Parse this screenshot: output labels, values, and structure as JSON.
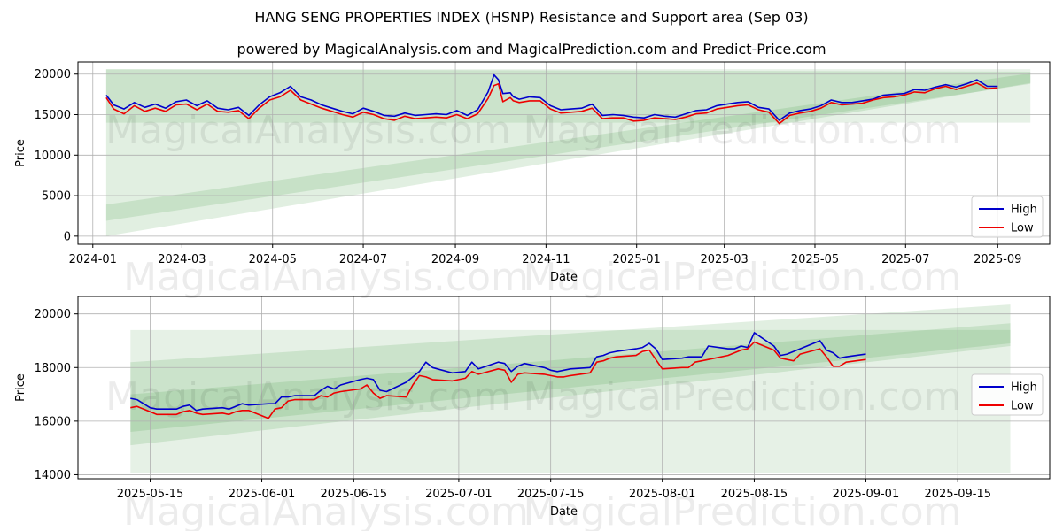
{
  "title": "HANG SENG PROPERTIES INDEX (HSNP) Resistance and Support area (Sep 03)",
  "subtitle": "powered by MagicalAnalysis.com and MagicalPrediction.com and Predict-Price.com",
  "watermarks": [
    "MagicalAnalysis.com",
    "MagicalPrediction.com"
  ],
  "colors": {
    "high": "#0000cc",
    "low": "#ee0000",
    "band": "#2e8b2e",
    "grid": "#b0b0b0"
  },
  "chart_data": [
    {
      "type": "line",
      "name": "full-range",
      "xlabel": "Date",
      "ylabel": "Price",
      "xlim": [
        "2023-12-22",
        "2025-10-06"
      ],
      "ylim": [
        -1000,
        21500
      ],
      "xticks": [
        "2024-01",
        "2024-03",
        "2024-05",
        "2024-07",
        "2024-09",
        "2024-11",
        "2025-01",
        "2025-03",
        "2025-05",
        "2025-07",
        "2025-09"
      ],
      "xtick_dates": [
        "2024-01-01",
        "2024-03-01",
        "2024-05-01",
        "2024-07-01",
        "2024-09-01",
        "2024-11-01",
        "2025-01-01",
        "2025-03-01",
        "2025-05-01",
        "2025-07-01",
        "2025-09-01"
      ],
      "yticks": [
        0,
        5000,
        10000,
        15000,
        20000
      ],
      "ytick_labels": [
        "0",
        "5000",
        "10000",
        "15000",
        "20000"
      ],
      "legend": [
        "High",
        "Low"
      ],
      "legend_loc": "lower right",
      "bands": [
        {
          "x": [
            "2024-01-10",
            "2025-09-23"
          ],
          "upper": [
            20600,
            20600
          ],
          "lower": [
            14000,
            14000
          ]
        },
        {
          "x": [
            "2024-01-10",
            "2025-09-23"
          ],
          "upper": [
            20600,
            20300
          ],
          "lower": [
            0,
            18900
          ]
        },
        {
          "x": [
            "2024-01-10",
            "2025-09-23"
          ],
          "upper": [
            3900,
            20100
          ],
          "lower": [
            1900,
            18800
          ]
        }
      ],
      "series": [
        {
          "name": "High",
          "x": [
            "2024-01-10",
            "2024-01-15",
            "2024-01-22",
            "2024-01-29",
            "2024-02-05",
            "2024-02-12",
            "2024-02-19",
            "2024-02-26",
            "2024-03-04",
            "2024-03-11",
            "2024-03-18",
            "2024-03-25",
            "2024-04-01",
            "2024-04-08",
            "2024-04-15",
            "2024-04-22",
            "2024-04-29",
            "2024-05-06",
            "2024-05-13",
            "2024-05-20",
            "2024-05-27",
            "2024-06-03",
            "2024-06-10",
            "2024-06-17",
            "2024-06-24",
            "2024-07-01",
            "2024-07-08",
            "2024-07-15",
            "2024-07-22",
            "2024-07-29",
            "2024-08-05",
            "2024-08-12",
            "2024-08-19",
            "2024-08-26",
            "2024-09-02",
            "2024-09-09",
            "2024-09-16",
            "2024-09-23",
            "2024-09-27",
            "2024-09-30",
            "2024-10-03",
            "2024-10-08",
            "2024-10-10",
            "2024-10-14",
            "2024-10-21",
            "2024-10-28",
            "2024-11-04",
            "2024-11-11",
            "2024-11-18",
            "2024-11-25",
            "2024-12-02",
            "2024-12-09",
            "2024-12-16",
            "2024-12-23",
            "2024-12-30",
            "2025-01-06",
            "2025-01-13",
            "2025-01-20",
            "2025-01-27",
            "2025-02-03",
            "2025-02-10",
            "2025-02-17",
            "2025-02-24",
            "2025-03-03",
            "2025-03-10",
            "2025-03-17",
            "2025-03-24",
            "2025-03-31",
            "2025-04-07",
            "2025-04-14",
            "2025-04-21",
            "2025-04-28",
            "2025-05-05",
            "2025-05-12",
            "2025-05-19",
            "2025-05-26",
            "2025-06-02",
            "2025-06-09",
            "2025-06-16",
            "2025-06-23",
            "2025-06-30",
            "2025-07-07",
            "2025-07-14",
            "2025-07-21",
            "2025-07-28",
            "2025-08-04",
            "2025-08-11",
            "2025-08-18",
            "2025-08-25",
            "2025-09-01"
          ],
          "y": [
            17400,
            16200,
            15700,
            16500,
            15900,
            16300,
            15800,
            16600,
            16800,
            16100,
            16700,
            15800,
            15600,
            15900,
            14900,
            16200,
            17200,
            17700,
            18500,
            17200,
            16800,
            16200,
            15800,
            15400,
            15100,
            15800,
            15400,
            14900,
            14800,
            15200,
            14900,
            15000,
            15100,
            15000,
            15500,
            14900,
            15600,
            17800,
            19900,
            19300,
            17600,
            17700,
            17200,
            16900,
            17200,
            17100,
            16100,
            15600,
            15700,
            15800,
            16300,
            14900,
            15000,
            14900,
            14700,
            14600,
            15000,
            14800,
            14700,
            15100,
            15500,
            15600,
            16100,
            16300,
            16500,
            16600,
            15900,
            15700,
            14300,
            15200,
            15500,
            15700,
            16100,
            16800,
            16500,
            16500,
            16700,
            16900,
            17400,
            17500,
            17600,
            18100,
            18000,
            18400,
            18700,
            18400,
            18800,
            19300,
            18500,
            18500
          ]
        },
        {
          "name": "Low",
          "x": [
            "2024-01-10",
            "2024-01-15",
            "2024-01-22",
            "2024-01-29",
            "2024-02-05",
            "2024-02-12",
            "2024-02-19",
            "2024-02-26",
            "2024-03-04",
            "2024-03-11",
            "2024-03-18",
            "2024-03-25",
            "2024-04-01",
            "2024-04-08",
            "2024-04-15",
            "2024-04-22",
            "2024-04-29",
            "2024-05-06",
            "2024-05-13",
            "2024-05-20",
            "2024-05-27",
            "2024-06-03",
            "2024-06-10",
            "2024-06-17",
            "2024-06-24",
            "2024-07-01",
            "2024-07-08",
            "2024-07-15",
            "2024-07-22",
            "2024-07-29",
            "2024-08-05",
            "2024-08-12",
            "2024-08-19",
            "2024-08-26",
            "2024-09-02",
            "2024-09-09",
            "2024-09-16",
            "2024-09-23",
            "2024-09-27",
            "2024-09-30",
            "2024-10-03",
            "2024-10-08",
            "2024-10-10",
            "2024-10-14",
            "2024-10-21",
            "2024-10-28",
            "2024-11-04",
            "2024-11-11",
            "2024-11-18",
            "2024-11-25",
            "2024-12-02",
            "2024-12-09",
            "2024-12-16",
            "2024-12-23",
            "2024-12-30",
            "2025-01-06",
            "2025-01-13",
            "2025-01-20",
            "2025-01-27",
            "2025-02-03",
            "2025-02-10",
            "2025-02-17",
            "2025-02-24",
            "2025-03-03",
            "2025-03-10",
            "2025-03-17",
            "2025-03-24",
            "2025-03-31",
            "2025-04-07",
            "2025-04-14",
            "2025-04-21",
            "2025-04-28",
            "2025-05-05",
            "2025-05-12",
            "2025-05-19",
            "2025-05-26",
            "2025-06-02",
            "2025-06-09",
            "2025-06-16",
            "2025-06-23",
            "2025-06-30",
            "2025-07-07",
            "2025-07-14",
            "2025-07-21",
            "2025-07-28",
            "2025-08-04",
            "2025-08-11",
            "2025-08-18",
            "2025-08-25",
            "2025-09-01"
          ],
          "y": [
            17100,
            15700,
            15100,
            16100,
            15400,
            15800,
            15400,
            16200,
            16300,
            15600,
            16300,
            15400,
            15300,
            15500,
            14500,
            15800,
            16800,
            17200,
            18000,
            16800,
            16300,
            15800,
            15400,
            15000,
            14700,
            15300,
            15000,
            14500,
            14300,
            14800,
            14500,
            14600,
            14700,
            14600,
            15000,
            14500,
            15100,
            17000,
            18600,
            18800,
            16600,
            17100,
            16700,
            16500,
            16700,
            16700,
            15700,
            15200,
            15300,
            15400,
            15800,
            14500,
            14600,
            14600,
            14200,
            14300,
            14600,
            14500,
            14400,
            14700,
            15100,
            15200,
            15700,
            15900,
            16100,
            16200,
            15600,
            15300,
            13900,
            14900,
            15200,
            15400,
            15800,
            16500,
            16200,
            16300,
            16400,
            16800,
            17100,
            17200,
            17400,
            17800,
            17700,
            18200,
            18500,
            18100,
            18500,
            18900,
            18200,
            18300
          ]
        }
      ]
    },
    {
      "type": "line",
      "name": "zoomed",
      "xlabel": "Date",
      "ylabel": "Price",
      "xlim": [
        "2025-05-04",
        "2025-09-29"
      ],
      "ylim": [
        13850,
        20650
      ],
      "xticks": [
        "2025-05-15",
        "2025-06-01",
        "2025-06-15",
        "2025-07-01",
        "2025-07-15",
        "2025-08-01",
        "2025-08-15",
        "2025-09-01",
        "2025-09-15"
      ],
      "xtick_dates": [
        "2025-05-15",
        "2025-06-01",
        "2025-06-15",
        "2025-07-01",
        "2025-07-15",
        "2025-08-01",
        "2025-08-15",
        "2025-09-01",
        "2025-09-15"
      ],
      "yticks": [
        14000,
        16000,
        18000,
        20000
      ],
      "ytick_labels": [
        "14000",
        "16000",
        "18000",
        "20000"
      ],
      "legend": [
        "High",
        "Low"
      ],
      "legend_loc": "center right",
      "bands": [
        {
          "x": [
            "2025-05-12",
            "2025-09-23"
          ],
          "upper": [
            19400,
            19400
          ],
          "lower": [
            14050,
            14050
          ]
        },
        {
          "x": [
            "2025-05-12",
            "2025-09-23"
          ],
          "upper": [
            18200,
            20350
          ],
          "lower": [
            15100,
            18800
          ]
        },
        {
          "x": [
            "2025-05-12",
            "2025-09-23"
          ],
          "upper": [
            17000,
            19650
          ],
          "lower": [
            15600,
            18900
          ]
        }
      ],
      "series": [
        {
          "name": "High",
          "x": [
            "2025-05-12",
            "2025-05-13",
            "2025-05-14",
            "2025-05-15",
            "2025-05-16",
            "2025-05-19",
            "2025-05-20",
            "2025-05-21",
            "2025-05-22",
            "2025-05-23",
            "2025-05-26",
            "2025-05-27",
            "2025-05-28",
            "2025-05-29",
            "2025-05-30",
            "2025-06-02",
            "2025-06-03",
            "2025-06-04",
            "2025-06-05",
            "2025-06-06",
            "2025-06-09",
            "2025-06-10",
            "2025-06-11",
            "2025-06-12",
            "2025-06-13",
            "2025-06-16",
            "2025-06-17",
            "2025-06-18",
            "2025-06-19",
            "2025-06-20",
            "2025-06-23",
            "2025-06-24",
            "2025-06-25",
            "2025-06-26",
            "2025-06-27",
            "2025-06-30",
            "2025-07-02",
            "2025-07-03",
            "2025-07-04",
            "2025-07-07",
            "2025-07-08",
            "2025-07-09",
            "2025-07-10",
            "2025-07-11",
            "2025-07-14",
            "2025-07-15",
            "2025-07-16",
            "2025-07-17",
            "2025-07-18",
            "2025-07-21",
            "2025-07-22",
            "2025-07-23",
            "2025-07-24",
            "2025-07-25",
            "2025-07-28",
            "2025-07-29",
            "2025-07-30",
            "2025-07-31",
            "2025-08-01",
            "2025-08-04",
            "2025-08-05",
            "2025-08-06",
            "2025-08-07",
            "2025-08-08",
            "2025-08-11",
            "2025-08-12",
            "2025-08-13",
            "2025-08-14",
            "2025-08-15",
            "2025-08-18",
            "2025-08-19",
            "2025-08-20",
            "2025-08-21",
            "2025-08-22",
            "2025-08-25",
            "2025-08-26",
            "2025-08-27",
            "2025-08-28",
            "2025-08-29",
            "2025-09-01"
          ],
          "y": [
            16850,
            16800,
            16650,
            16500,
            16450,
            16450,
            16550,
            16600,
            16400,
            16450,
            16500,
            16450,
            16550,
            16650,
            16600,
            16650,
            16650,
            16900,
            16900,
            16950,
            16950,
            17150,
            17300,
            17200,
            17350,
            17550,
            17600,
            17550,
            17150,
            17100,
            17450,
            17650,
            17850,
            18200,
            18000,
            17800,
            17850,
            18200,
            17950,
            18200,
            18150,
            17850,
            18050,
            18150,
            18000,
            17900,
            17850,
            17900,
            17950,
            18000,
            18400,
            18450,
            18550,
            18600,
            18700,
            18750,
            18900,
            18700,
            18300,
            18350,
            18400,
            18400,
            18400,
            18800,
            18700,
            18700,
            18800,
            18750,
            19300,
            18800,
            18450,
            18500,
            18600,
            18700,
            19000,
            18650,
            18550,
            18350,
            18400,
            18500
          ]
        },
        {
          "name": "Low",
          "x": [
            "2025-05-12",
            "2025-05-13",
            "2025-05-14",
            "2025-05-15",
            "2025-05-16",
            "2025-05-19",
            "2025-05-20",
            "2025-05-21",
            "2025-05-22",
            "2025-05-23",
            "2025-05-26",
            "2025-05-27",
            "2025-05-28",
            "2025-05-29",
            "2025-05-30",
            "2025-06-02",
            "2025-06-03",
            "2025-06-04",
            "2025-06-05",
            "2025-06-06",
            "2025-06-09",
            "2025-06-10",
            "2025-06-11",
            "2025-06-12",
            "2025-06-13",
            "2025-06-16",
            "2025-06-17",
            "2025-06-18",
            "2025-06-19",
            "2025-06-20",
            "2025-06-23",
            "2025-06-24",
            "2025-06-25",
            "2025-06-26",
            "2025-06-27",
            "2025-06-30",
            "2025-07-02",
            "2025-07-03",
            "2025-07-04",
            "2025-07-07",
            "2025-07-08",
            "2025-07-09",
            "2025-07-10",
            "2025-07-11",
            "2025-07-14",
            "2025-07-15",
            "2025-07-16",
            "2025-07-17",
            "2025-07-18",
            "2025-07-21",
            "2025-07-22",
            "2025-07-23",
            "2025-07-24",
            "2025-07-25",
            "2025-07-28",
            "2025-07-29",
            "2025-07-30",
            "2025-07-31",
            "2025-08-01",
            "2025-08-04",
            "2025-08-05",
            "2025-08-06",
            "2025-08-07",
            "2025-08-08",
            "2025-08-11",
            "2025-08-12",
            "2025-08-13",
            "2025-08-14",
            "2025-08-15",
            "2025-08-18",
            "2025-08-19",
            "2025-08-20",
            "2025-08-21",
            "2025-08-22",
            "2025-08-25",
            "2025-08-26",
            "2025-08-27",
            "2025-08-28",
            "2025-08-29",
            "2025-09-01"
          ],
          "y": [
            16500,
            16550,
            16450,
            16350,
            16250,
            16250,
            16350,
            16400,
            16300,
            16250,
            16300,
            16250,
            16350,
            16400,
            16400,
            16100,
            16450,
            16500,
            16750,
            16800,
            16800,
            16950,
            16900,
            17050,
            17100,
            17200,
            17350,
            17050,
            16850,
            16950,
            16900,
            17350,
            17700,
            17650,
            17550,
            17500,
            17600,
            17850,
            17750,
            17950,
            17900,
            17450,
            17750,
            17800,
            17750,
            17700,
            17650,
            17650,
            17700,
            17800,
            18200,
            18250,
            18350,
            18400,
            18450,
            18600,
            18650,
            18300,
            17950,
            18000,
            18000,
            18200,
            18250,
            18300,
            18450,
            18550,
            18650,
            18700,
            18950,
            18650,
            18350,
            18300,
            18250,
            18500,
            18700,
            18400,
            18050,
            18050,
            18200,
            18300
          ]
        }
      ]
    }
  ]
}
